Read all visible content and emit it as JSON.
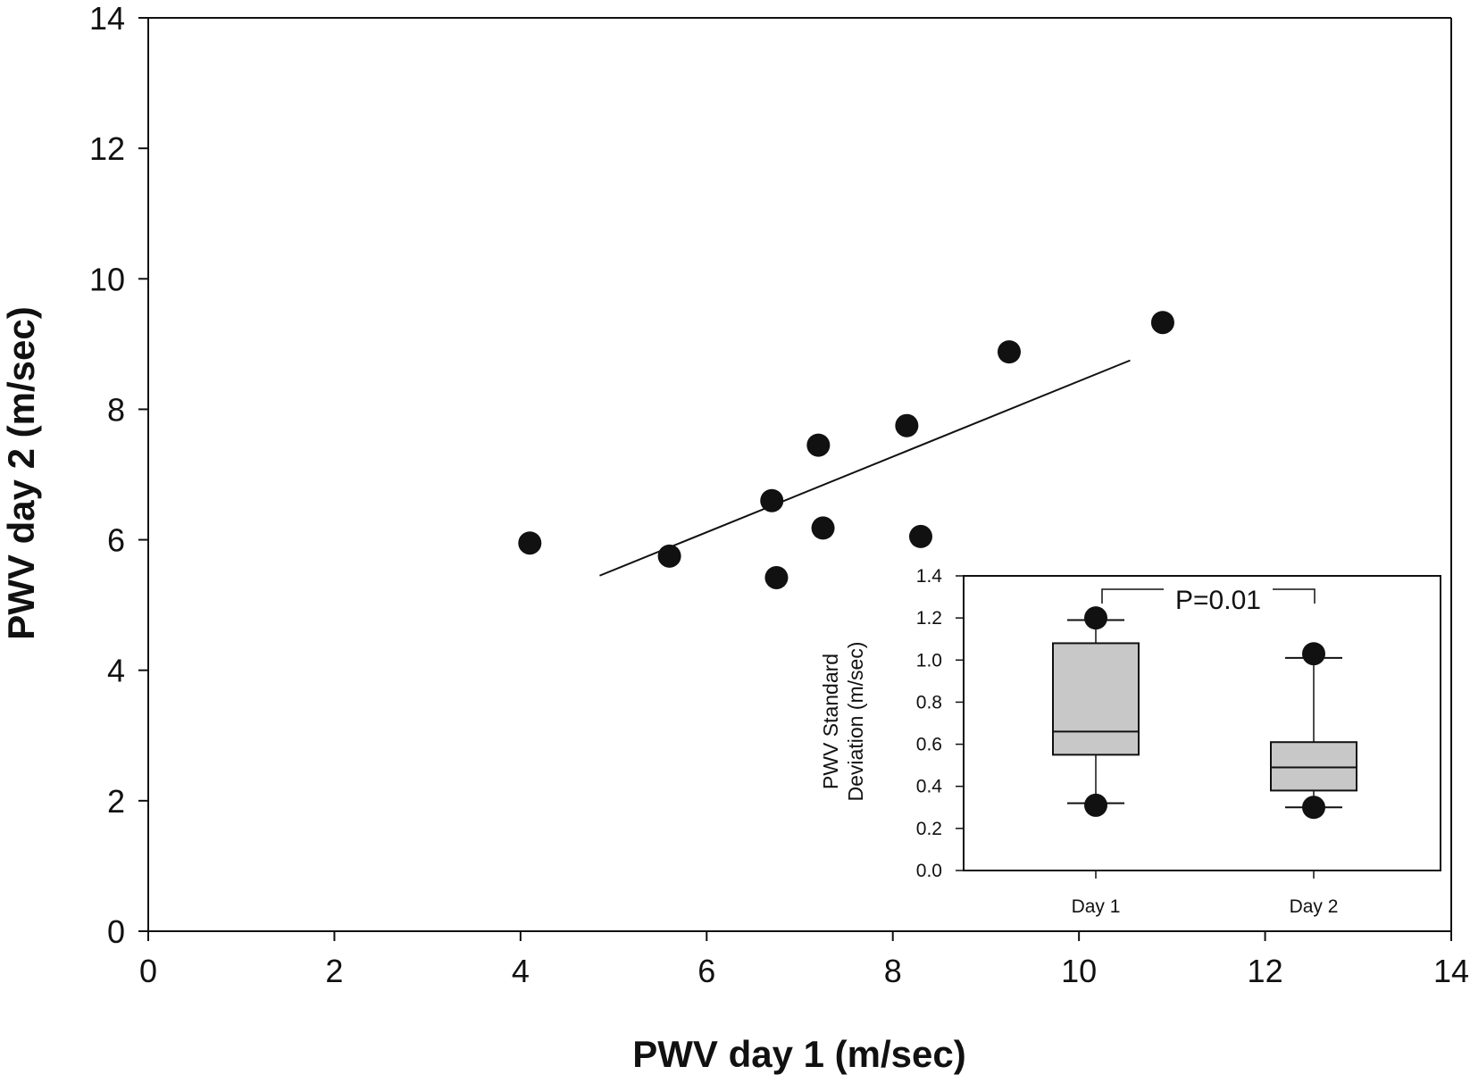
{
  "chart_data": [
    {
      "type": "scatter",
      "xlabel": "PWV day 1 (m/sec)",
      "ylabel": "PWV day 2 (m/sec)",
      "xlim": [
        0,
        14
      ],
      "ylim": [
        0,
        14
      ],
      "xticks": [
        "0",
        "2",
        "4",
        "6",
        "8",
        "10",
        "12",
        "14"
      ],
      "yticks": [
        "0",
        "2",
        "4",
        "6",
        "8",
        "10",
        "12",
        "14"
      ],
      "grid": false,
      "points": [
        {
          "x": 4.1,
          "y": 5.95
        },
        {
          "x": 5.6,
          "y": 5.75
        },
        {
          "x": 6.7,
          "y": 6.6
        },
        {
          "x": 6.75,
          "y": 5.42
        },
        {
          "x": 7.2,
          "y": 7.45
        },
        {
          "x": 7.25,
          "y": 6.18
        },
        {
          "x": 8.15,
          "y": 7.75
        },
        {
          "x": 8.3,
          "y": 6.05
        },
        {
          "x": 9.25,
          "y": 8.88
        },
        {
          "x": 10.9,
          "y": 9.33
        }
      ],
      "regression_line": {
        "x": [
          4.85,
          10.55
        ],
        "y": [
          5.45,
          8.75
        ]
      }
    },
    {
      "type": "box",
      "categories": [
        "Day 1",
        "Day 2"
      ],
      "ylabel": "PWV Standard Deviation (m/sec)",
      "ylabel_lines": [
        "PWV Standard",
        "Deviation (m/sec)"
      ],
      "ylim": [
        0,
        1.4
      ],
      "yticks": [
        "0.0",
        "0.2",
        "0.4",
        "0.6",
        "0.8",
        "1.0",
        "1.2",
        "1.4"
      ],
      "boxes": [
        {
          "category": "Day 1",
          "whisker_low": 0.32,
          "q1": 0.55,
          "median": 0.66,
          "q3": 1.08,
          "whisker_high": 1.19,
          "outliers": [
            0.31,
            1.2
          ]
        },
        {
          "category": "Day 2",
          "whisker_low": 0.3,
          "q1": 0.38,
          "median": 0.49,
          "q3": 0.61,
          "whisker_high": 1.01,
          "outliers": [
            0.3,
            1.03
          ]
        }
      ],
      "annotation": "P=0.01",
      "colors": {
        "box_fill": "#c8c8c8",
        "marker": "#111111"
      }
    }
  ]
}
